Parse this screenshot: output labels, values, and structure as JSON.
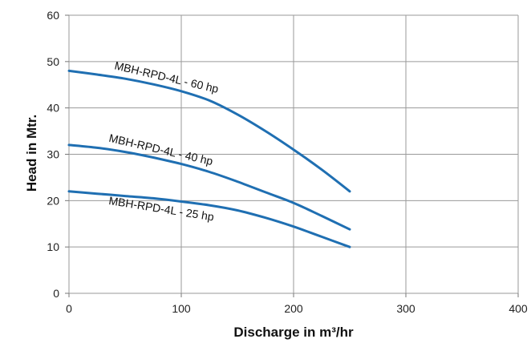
{
  "chart_data": {
    "type": "line",
    "title": "",
    "xlabel": "Discharge in m³/hr",
    "ylabel": "Head in Mtr.",
    "xlim": [
      0,
      400
    ],
    "ylim": [
      0,
      60
    ],
    "xticks": [
      "0",
      "100",
      "200",
      "300",
      "400"
    ],
    "yticks": [
      "0",
      "10",
      "20",
      "30",
      "40",
      "50",
      "60"
    ],
    "grid": true,
    "legend": "none (curves labeled inline)",
    "line_color": "#1f6fb2",
    "series": [
      {
        "name": "MBH-RPD-4L - 60 hp",
        "x": [
          0,
          25,
          50,
          75,
          100,
          125,
          150,
          175,
          200,
          225,
          250
        ],
        "y": [
          48,
          47.2,
          46.3,
          45.1,
          43.6,
          41.6,
          38.6,
          35,
          31,
          26.7,
          22
        ]
      },
      {
        "name": "MBH-RPD-4L - 40 hp",
        "x": [
          0,
          25,
          50,
          75,
          100,
          125,
          150,
          175,
          200,
          225,
          250
        ],
        "y": [
          32,
          31.4,
          30.5,
          29.3,
          27.9,
          26.2,
          24.1,
          21.8,
          19.5,
          16.7,
          13.8
        ]
      },
      {
        "name": "MBH-RPD-4L - 25 hp",
        "x": [
          0,
          25,
          50,
          75,
          100,
          125,
          150,
          175,
          200,
          225,
          250
        ],
        "y": [
          22,
          21.5,
          21,
          20.5,
          19.8,
          19,
          17.9,
          16.3,
          14.4,
          12.2,
          10
        ]
      }
    ]
  }
}
